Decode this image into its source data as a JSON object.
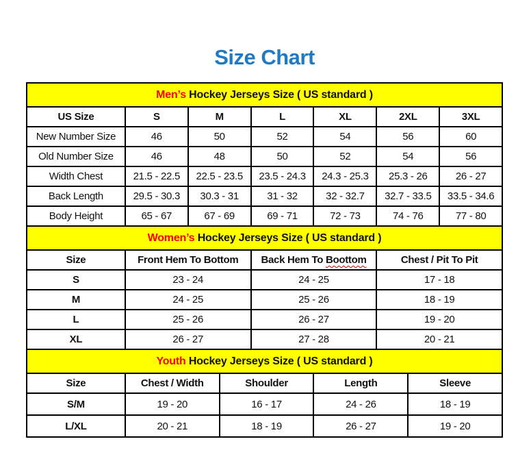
{
  "page": {
    "title": "Size Chart"
  },
  "colors": {
    "title_blue": "#1f7ac6",
    "band_yellow": "#ffff00",
    "accent_red": "#ff0000",
    "border_black": "#000000",
    "squiggle_red": "#d40000"
  },
  "sections": [
    {
      "name": "mens",
      "band_accent": "Men’s",
      "band_rest": " Hockey Jerseys Size ( US standard )",
      "bold_labels": false,
      "columns": [
        "US Size",
        "S",
        "M",
        "L",
        "XL",
        "2XL",
        "3XL"
      ],
      "rows": [
        {
          "label": "New Number Size",
          "values": [
            "46",
            "50",
            "52",
            "54",
            "56",
            "60"
          ]
        },
        {
          "label": "Old Number Size",
          "values": [
            "46",
            "48",
            "50",
            "52",
            "54",
            "56"
          ]
        },
        {
          "label": "Width Chest",
          "values": [
            "21.5 - 22.5",
            "22.5 - 23.5",
            "23.5 - 24.3",
            "24.3 - 25.3",
            "25.3 - 26",
            "26 - 27"
          ]
        },
        {
          "label": "Back Length",
          "values": [
            "29.5 - 30.3",
            "30.3 - 31",
            "31 - 32",
            "32 - 32.7",
            "32.7 - 33.5",
            "33.5 - 34.6"
          ]
        },
        {
          "label": "Body Height",
          "values": [
            "65 - 67",
            "67 - 69",
            "69 - 71",
            "72 - 73",
            "74 - 76",
            "77 - 80"
          ]
        }
      ]
    },
    {
      "name": "womens",
      "band_accent": "Women’s",
      "band_rest": " Hockey Jerseys Size ( US standard )",
      "bold_labels": true,
      "columns": [
        "Size",
        "Front Hem To Bottom",
        {
          "text": "Back Hem To ",
          "misspelled": "Boottom"
        },
        "Chest / Pit To Pit"
      ],
      "rows": [
        {
          "label": "S",
          "values": [
            "23 - 24",
            "24 - 25",
            "17 - 18"
          ]
        },
        {
          "label": "M",
          "values": [
            "24 - 25",
            "25 - 26",
            "18 - 19"
          ]
        },
        {
          "label": "L",
          "values": [
            "25 - 26",
            "26 - 27",
            "19 - 20"
          ]
        },
        {
          "label": "XL",
          "values": [
            "26 - 27",
            "27 - 28",
            "20 - 21"
          ]
        }
      ]
    },
    {
      "name": "youth",
      "band_accent": "Youth",
      "band_rest": " Hockey Jerseys Size ( US standard )",
      "bold_labels": true,
      "columns": [
        "Size",
        "Chest / Width",
        "Shoulder",
        "Length",
        "Sleeve"
      ],
      "rows": [
        {
          "label": "S/M",
          "values": [
            "19 - 20",
            "16 - 17",
            "24 - 26",
            "18 - 19"
          ]
        },
        {
          "label": "L/XL",
          "values": [
            "20 - 21",
            "18 - 19",
            "26 - 27",
            "19 - 20"
          ]
        }
      ]
    }
  ]
}
